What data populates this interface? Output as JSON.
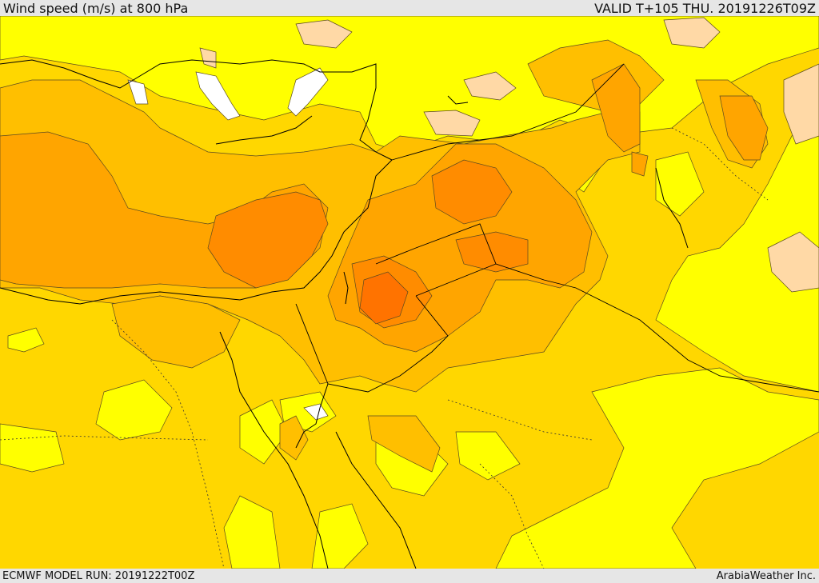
{
  "header": {
    "title": "Wind speed (m/s) at 800 hPa",
    "valid": "VALID T+105 THU. 20191226T09Z"
  },
  "footer": {
    "model_run": "ECMWF MODEL RUN: 20191222T00Z",
    "credit": "ArabiaWeather Inc."
  },
  "colors": {
    "level_white": "#ffffff",
    "level_light_yellow": "#ffff00",
    "level_gold": "#ffd700",
    "level_amber": "#ffbf00",
    "level_orange": "#ffa500",
    "level_dark_orange": "#ff8c00",
    "level_deep_orange": "#ff7300",
    "level_tan": "#ffd9a6",
    "coast": "#000000",
    "contour": "#5a4a20"
  }
}
